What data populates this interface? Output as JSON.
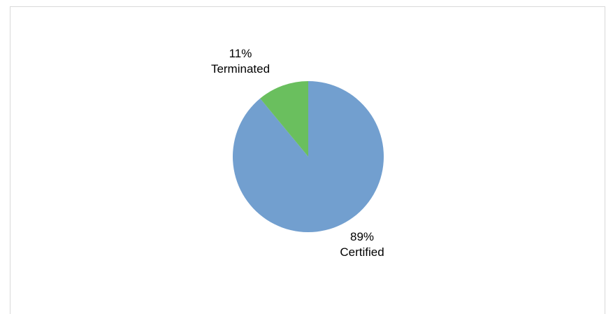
{
  "top_caption": "",
  "chart_data": {
    "type": "pie",
    "title": "",
    "slices": [
      {
        "name": "Certified",
        "value": 89,
        "percent_label": "89%",
        "color": "#729fcf"
      },
      {
        "name": "Terminated",
        "value": 11,
        "percent_label": "11%",
        "color": "#6abf5e"
      }
    ],
    "start_angle_deg": 0,
    "direction": "clockwise",
    "legend": "none",
    "data_labels": "outside"
  }
}
